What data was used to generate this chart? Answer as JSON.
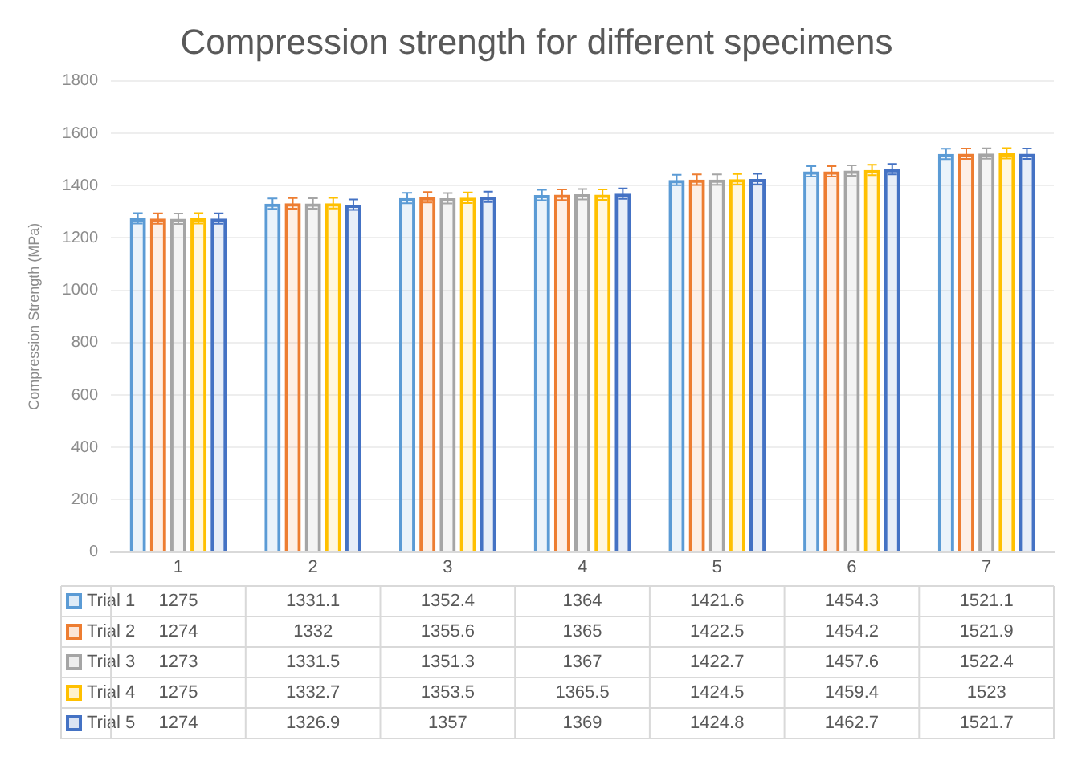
{
  "chart_data": {
    "type": "bar",
    "title": "Compression strength for different specimens",
    "ylabel": "Compression Strength (MPa)",
    "categories": [
      "1",
      "2",
      "3",
      "4",
      "5",
      "6",
      "7"
    ],
    "series": [
      {
        "name": "Trial 1",
        "color": "#5b9bd5",
        "values": [
          1275,
          1331.1,
          1352.4,
          1364,
          1421.6,
          1454.3,
          1521.1
        ],
        "errors": [
          20,
          20,
          20,
          20,
          20,
          20,
          20
        ]
      },
      {
        "name": "Trial 2",
        "color": "#ed7d31",
        "values": [
          1274,
          1332,
          1355.6,
          1365,
          1422.5,
          1454.2,
          1521.9
        ],
        "errors": [
          20,
          20,
          20,
          20,
          20,
          20,
          20
        ]
      },
      {
        "name": "Trial 3",
        "color": "#a5a5a5",
        "values": [
          1273,
          1331.5,
          1351.3,
          1367,
          1422.7,
          1457.6,
          1522.4
        ],
        "errors": [
          20,
          20,
          20,
          20,
          20,
          20,
          20
        ]
      },
      {
        "name": "Trial 4",
        "color": "#ffc000",
        "values": [
          1275,
          1332.7,
          1353.5,
          1365.5,
          1424.5,
          1459.4,
          1523
        ],
        "errors": [
          20,
          20,
          20,
          20,
          20,
          20,
          20
        ]
      },
      {
        "name": "Trial 5",
        "color": "#4472c4",
        "values": [
          1274,
          1326.9,
          1357,
          1369,
          1424.8,
          1462.7,
          1521.7
        ],
        "errors": [
          20,
          20,
          20,
          20,
          20,
          20,
          20
        ]
      }
    ],
    "ylim": [
      0,
      1800
    ],
    "yticks": [
      0,
      200,
      400,
      600,
      800,
      1000,
      1200,
      1400,
      1600,
      1800
    ],
    "grid": "y",
    "legend": "bottom",
    "data_labels": true
  }
}
